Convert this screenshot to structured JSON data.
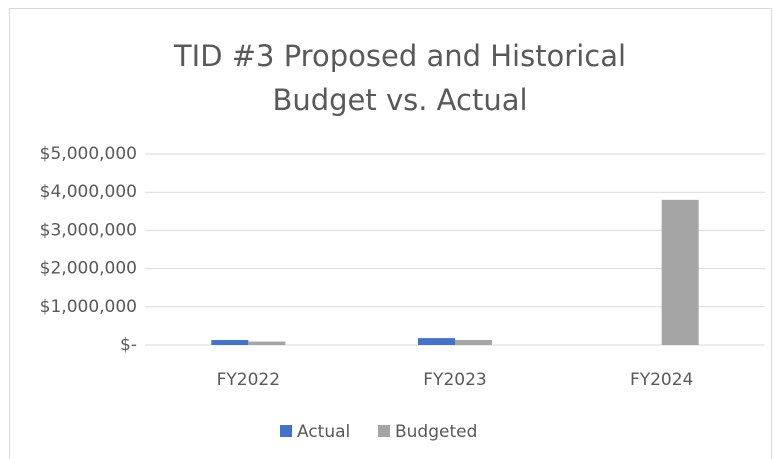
{
  "chart_data": {
    "type": "bar",
    "title": "TID #3 Proposed and Historical Budget vs. Actual",
    "categories": [
      "FY2022",
      "FY2023",
      "FY2024"
    ],
    "series": [
      {
        "name": "Actual",
        "color": "#4472c4",
        "values": [
          130000,
          180000,
          0
        ]
      },
      {
        "name": "Budgeted",
        "color": "#a5a5a5",
        "values": [
          90000,
          130000,
          3800000
        ]
      }
    ],
    "ylim": [
      0,
      5000000
    ],
    "yticks": [
      {
        "value": 0,
        "label": "$-"
      },
      {
        "value": 1000000,
        "label": "$1,000,000"
      },
      {
        "value": 2000000,
        "label": "$2,000,000"
      },
      {
        "value": 3000000,
        "label": "$3,000,000"
      },
      {
        "value": 4000000,
        "label": "$4,000,000"
      },
      {
        "value": 5000000,
        "label": "$5,000,000"
      }
    ],
    "grid": true,
    "legend": "bottom"
  }
}
